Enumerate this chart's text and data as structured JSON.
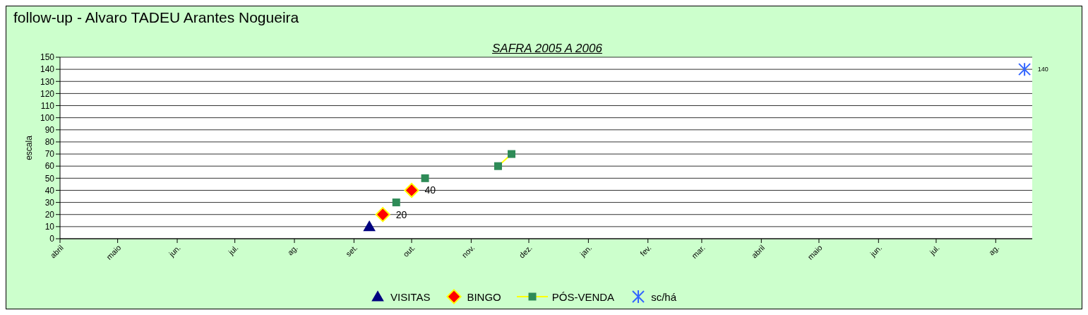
{
  "chart_data": {
    "type": "scatter",
    "title": "follow-up  - Alvaro TADEU Arantes Nogueira",
    "subtitle": "SAFRA 2005 A 2006",
    "ylabel": "escala",
    "xlim": [
      "2005-04-01",
      "2006-08-20"
    ],
    "xticks": [
      {
        "value": "2005-04-01",
        "label": "abril"
      },
      {
        "value": "2005-05-01",
        "label": "maio"
      },
      {
        "value": "2005-06-01",
        "label": "jun."
      },
      {
        "value": "2005-07-01",
        "label": "jul."
      },
      {
        "value": "2005-08-01",
        "label": "ag."
      },
      {
        "value": "2005-09-01",
        "label": "set."
      },
      {
        "value": "2005-10-01",
        "label": "out."
      },
      {
        "value": "2005-11-01",
        "label": "nov."
      },
      {
        "value": "2005-12-01",
        "label": "dez."
      },
      {
        "value": "2006-01-01",
        "label": "jan."
      },
      {
        "value": "2006-02-01",
        "label": "fev."
      },
      {
        "value": "2006-03-01",
        "label": "mar."
      },
      {
        "value": "2006-04-01",
        "label": "abril"
      },
      {
        "value": "2006-05-01",
        "label": "maio"
      },
      {
        "value": "2006-06-01",
        "label": "jun."
      },
      {
        "value": "2006-07-01",
        "label": "jul."
      },
      {
        "value": "2006-08-01",
        "label": "ag."
      }
    ],
    "ylim": [
      0,
      150
    ],
    "yticks": [
      0,
      10,
      20,
      30,
      40,
      50,
      60,
      70,
      80,
      90,
      100,
      110,
      120,
      130,
      140,
      150
    ],
    "grid": "y",
    "legend": "bottom",
    "series": [
      {
        "name": "VISITAS",
        "marker": "triangle",
        "color": "#000080",
        "x": [
          "2005-09-09"
        ],
        "values": [
          10
        ]
      },
      {
        "name": "BINGO",
        "marker": "diamond",
        "color": "#ff0000",
        "x": [
          "2005-09-16",
          "2005-10-01"
        ],
        "values": [
          20,
          40
        ],
        "value_labels": [
          "20",
          "40"
        ]
      },
      {
        "name": "PÓS-VENDA",
        "type": "line",
        "marker": "square",
        "color": "#2e8b57",
        "x": [
          "2005-09-23",
          "2005-10-01",
          "2005-10-08",
          "2005-11-01",
          "2005-11-15",
          "2005-11-22"
        ],
        "values": [
          30,
          null,
          50,
          null,
          60,
          70
        ]
      },
      {
        "name": "sc/há",
        "marker": "cross",
        "color": "#3366ff",
        "x": [
          "2006-08-16"
        ],
        "values": [
          140
        ],
        "value_labels": [
          "140"
        ]
      }
    ]
  }
}
